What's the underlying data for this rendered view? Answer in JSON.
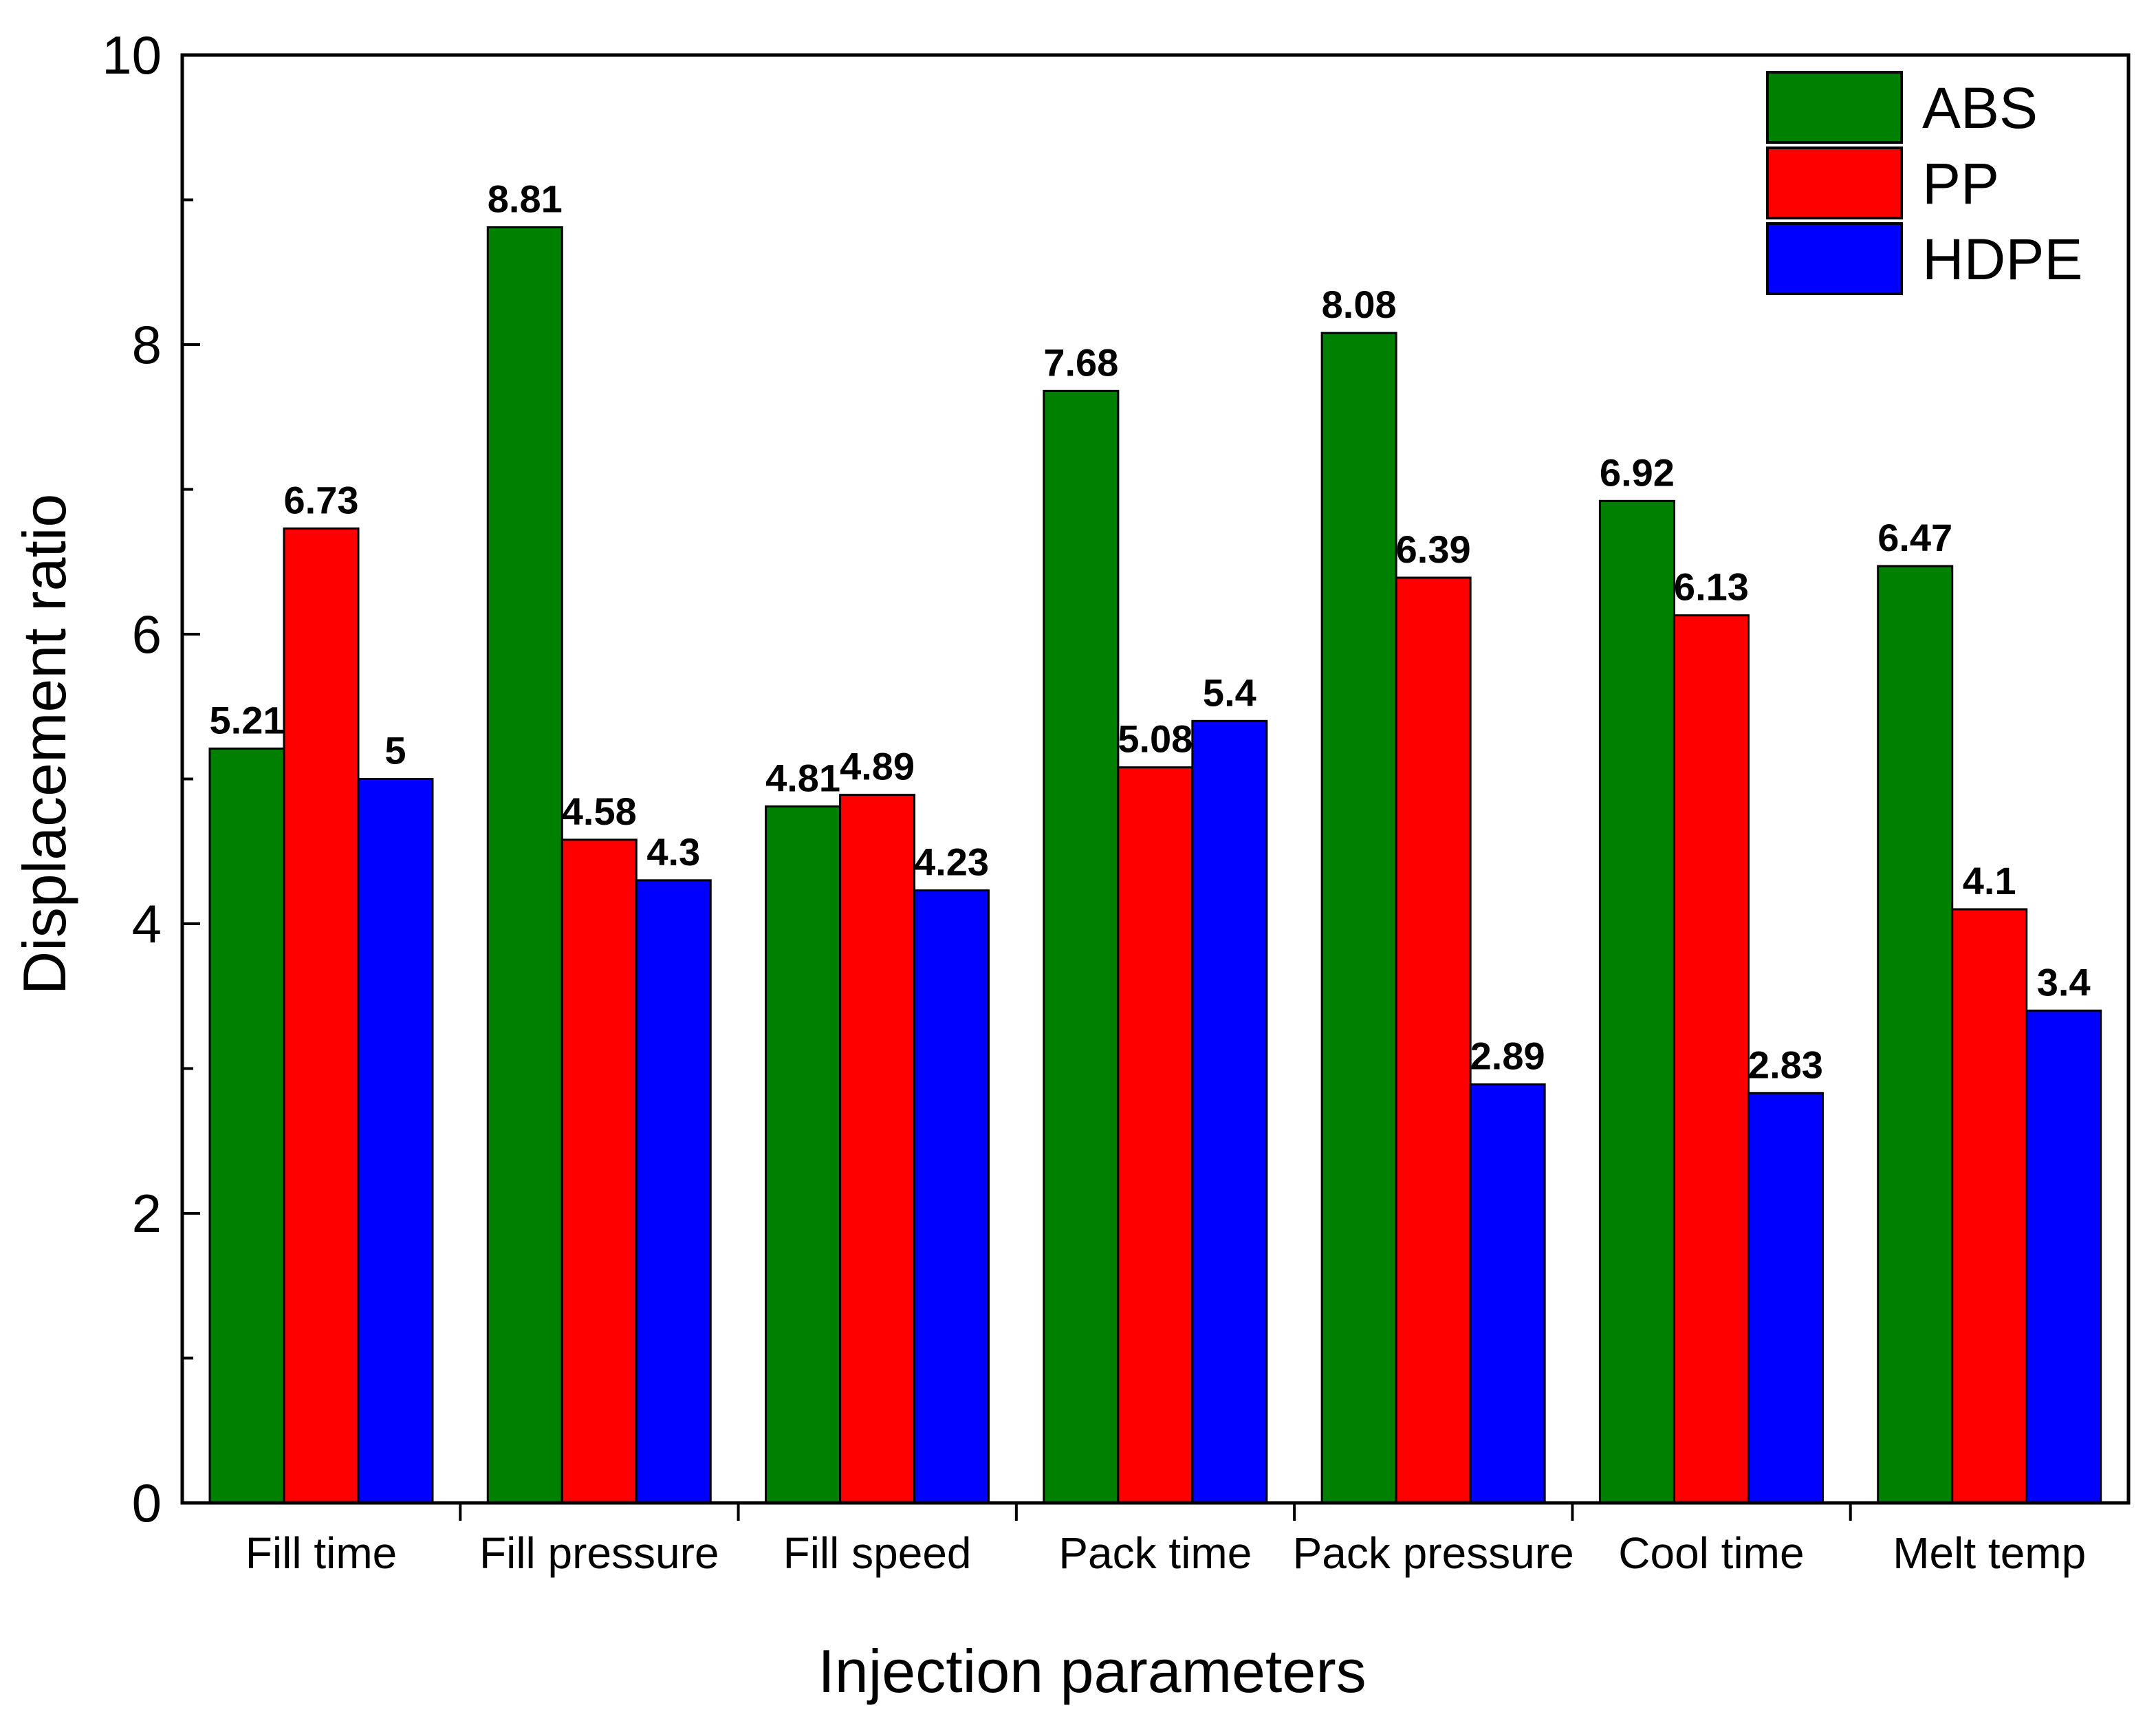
{
  "chart_data": {
    "type": "bar",
    "title": "",
    "xlabel": "Injection parameters",
    "ylabel": "Displacement ratio",
    "ylim": [
      0,
      10
    ],
    "yticks": [
      "0",
      "2",
      "4",
      "6",
      "8",
      "10"
    ],
    "categories": [
      "Fill time",
      "Fill pressure",
      "Fill speed",
      "Pack time",
      "Pack pressure",
      "Cool time",
      "Melt temp"
    ],
    "series": [
      {
        "name": "ABS",
        "color": "#008000",
        "values": [
          5.21,
          8.81,
          4.81,
          7.68,
          8.08,
          6.92,
          6.47
        ],
        "labels": [
          "5.21",
          "8.81",
          "4.81",
          "7.68",
          "8.08",
          "6.92",
          "6.47"
        ]
      },
      {
        "name": "PP",
        "color": "#ff0000",
        "values": [
          6.73,
          4.58,
          4.89,
          5.08,
          6.39,
          6.13,
          4.1
        ],
        "labels": [
          "6.73",
          "4.58",
          "4.89",
          "5.08",
          "6.39",
          "6.13",
          "4.1"
        ]
      },
      {
        "name": "HDPE",
        "color": "#0000ff",
        "values": [
          5,
          4.3,
          4.23,
          5.4,
          2.89,
          2.83,
          3.4
        ],
        "labels": [
          "5",
          "4.3",
          "4.23",
          "5.4",
          "2.89",
          "2.83",
          "3.4"
        ]
      }
    ],
    "legend_position": "top-right"
  }
}
